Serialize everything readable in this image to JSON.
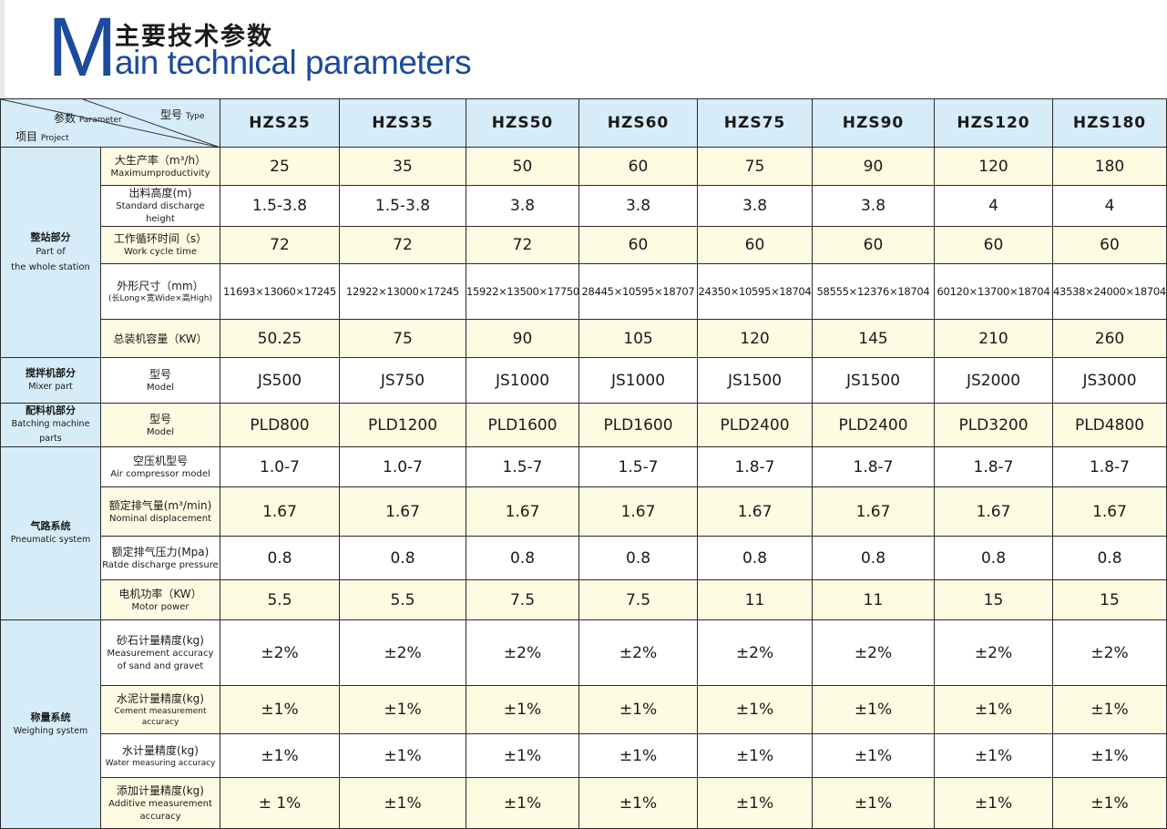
{
  "title": {
    "big_letter": "M",
    "cn": "主要技术参数",
    "en": "ain technical parameters"
  },
  "corner": {
    "type_cn": "型号",
    "type_en": "Type",
    "param_cn": "参数",
    "param_en": "Parameter",
    "project_cn": "项目",
    "project_en": "Project"
  },
  "models": [
    "HZS25",
    "HZS35",
    "HZS50",
    "HZS60",
    "HZS75",
    "HZS90",
    "HZS120",
    "HZS180"
  ],
  "categories": {
    "whole": {
      "cn": "整站部分",
      "en1": "Part of",
      "en2": "the whole station"
    },
    "mixer": {
      "cn": "搅拌机部分",
      "en": "Mixer part"
    },
    "batching": {
      "cn": "配料机部分",
      "en": "Batching machine parts"
    },
    "pneumatic": {
      "cn": "气路系统",
      "en": "Pneumatic system"
    },
    "weighing": {
      "cn": "称量系统",
      "en": "Weighing system"
    }
  },
  "rows": [
    {
      "cn": "大生产率（m³/h）",
      "en": "Maximumproductivity",
      "values": [
        "25",
        "35",
        "50",
        "60",
        "75",
        "90",
        "120",
        "180"
      ]
    },
    {
      "cn": "出料高度(m)",
      "en": "Standard discharge height",
      "values": [
        "1.5-3.8",
        "1.5-3.8",
        "3.8",
        "3.8",
        "3.8",
        "3.8",
        "4",
        "4"
      ]
    },
    {
      "cn": "工作循环时间（s）",
      "en": "Work cycle time",
      "values": [
        "72",
        "72",
        "72",
        "60",
        "60",
        "60",
        "60",
        "60"
      ]
    },
    {
      "cn": "外形尺寸（mm）",
      "en": "(长Long×宽Wide×高High)",
      "values": [
        "11693×13060×17245",
        "12922×13000×17245",
        "15922×13500×17750",
        "28445×10595×18707",
        "24350×10595×18704",
        "58555×12376×18704",
        "60120×13700×18704",
        "43538×24000×18704"
      ]
    },
    {
      "cn": "总装机容量（KW）",
      "en": "",
      "values": [
        "50.25",
        "75",
        "90",
        "105",
        "120",
        "145",
        "210",
        "260"
      ]
    },
    {
      "cn": "型号",
      "en": "Model",
      "values": [
        "JS500",
        "JS750",
        "JS1000",
        "JS1000",
        "JS1500",
        "JS1500",
        "JS2000",
        "JS3000"
      ]
    },
    {
      "cn": "型号",
      "en": "Model",
      "values": [
        "PLD800",
        "PLD1200",
        "PLD1600",
        "PLD1600",
        "PLD2400",
        "PLD2400",
        "PLD3200",
        "PLD4800"
      ]
    },
    {
      "cn": "空压机型号",
      "en": "Air compressor model",
      "values": [
        "1.0-7",
        "1.0-7",
        "1.5-7",
        "1.5-7",
        "1.8-7",
        "1.8-7",
        "1.8-7",
        "1.8-7"
      ]
    },
    {
      "cn": "额定排气量(m³/min)",
      "en": "Nominal displacement",
      "values": [
        "1.67",
        "1.67",
        "1.67",
        "1.67",
        "1.67",
        "1.67",
        "1.67",
        "1.67"
      ]
    },
    {
      "cn": "额定排气压力(Mpa)",
      "en": "Ratde discharge pressure",
      "values": [
        "0.8",
        "0.8",
        "0.8",
        "0.8",
        "0.8",
        "0.8",
        "0.8",
        "0.8"
      ]
    },
    {
      "cn": "电机功率（KW）",
      "en": "Motor power",
      "values": [
        "5.5",
        "5.5",
        "7.5",
        "7.5",
        "11",
        "11",
        "15",
        "15"
      ]
    },
    {
      "cn": "砂石计量精度(kg)",
      "en": "Measurement accuracy of sand and gravet",
      "values": [
        "±2%",
        "±2%",
        "±2%",
        "±2%",
        "±2%",
        "±2%",
        "±2%",
        "±2%"
      ]
    },
    {
      "cn": "水泥计量精度(kg)",
      "en": "Cement measurement accuracy",
      "values": [
        "±1%",
        "±1%",
        "±1%",
        "±1%",
        "±1%",
        "±1%",
        "±1%",
        "±1%"
      ]
    },
    {
      "cn": "水计量精度(kg)",
      "en": "Water measuring accuracy",
      "values": [
        "±1%",
        "±1%",
        "±1%",
        "±1%",
        "±1%",
        "±1%",
        "±1%",
        "±1%"
      ]
    },
    {
      "cn": "添加计量精度(kg)",
      "en": "Additive measurement accuracy",
      "values": [
        "± 1%",
        "±1%",
        "±1%",
        "±1%",
        "±1%",
        "±1%",
        "±1%",
        "±1%"
      ]
    }
  ]
}
